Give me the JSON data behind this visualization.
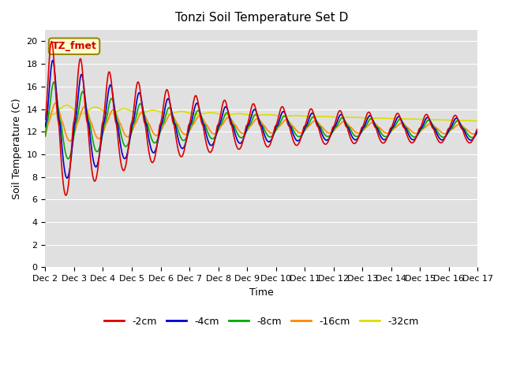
{
  "title": "Tonzi Soil Temperature Set D",
  "xlabel": "Time",
  "ylabel": "Soil Temperature (C)",
  "annotation": "TZ_fmet",
  "ylim": [
    0,
    21
  ],
  "yticks": [
    0,
    2,
    4,
    6,
    8,
    10,
    12,
    14,
    16,
    18,
    20
  ],
  "xtick_labels": [
    "Dec 2",
    "Dec 3",
    "Dec 4",
    "Dec 5",
    "Dec 6",
    "Dec 7",
    "Dec 8",
    "Dec 9",
    "Dec 10",
    "Dec 11",
    "Dec 12",
    "Dec 13",
    "Dec 14",
    "Dec 15",
    "Dec 16",
    "Dec 17"
  ],
  "series_colors": [
    "#dd0000",
    "#0000cc",
    "#00aa00",
    "#ff8800",
    "#dddd00"
  ],
  "series_labels": [
    "-2cm",
    "-4cm",
    "-8cm",
    "-16cm",
    "-32cm"
  ],
  "bg_color": "#e0e0e0",
  "line_width": 1.2,
  "n_points": 720,
  "n_days": 15
}
